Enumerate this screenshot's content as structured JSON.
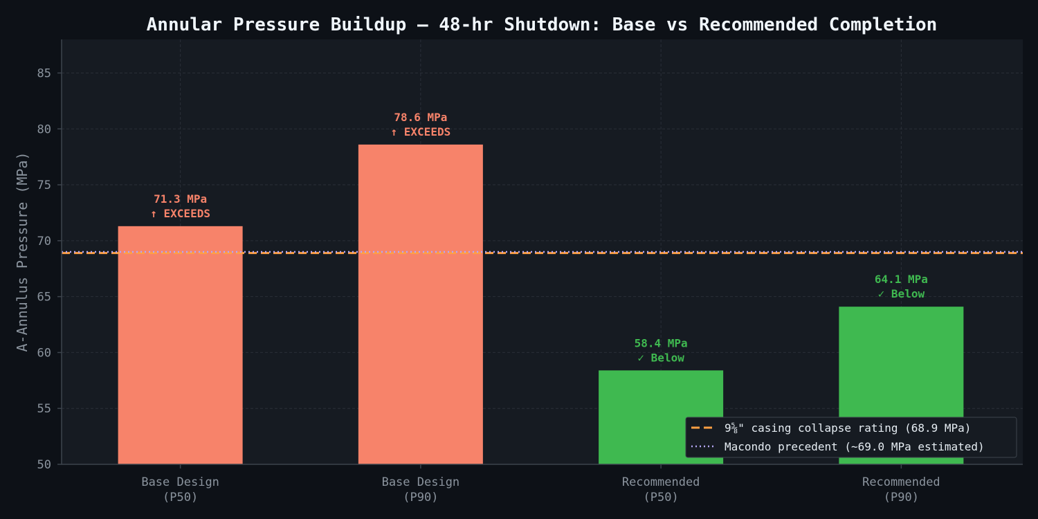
{
  "chart_data": {
    "type": "bar",
    "title": "Annular Pressure Buildup — 48-hr Shutdown: Base vs Recommended Completion",
    "xlabel": "",
    "ylabel": "A-Annulus Pressure (MPa)",
    "ylim": [
      50,
      88
    ],
    "yticks": [
      50,
      55,
      60,
      65,
      70,
      75,
      80,
      85
    ],
    "categories": [
      [
        "Base Design",
        "(P50)"
      ],
      [
        "Base Design",
        "(P90)"
      ],
      [
        "Recommended",
        "(P50)"
      ],
      [
        "Recommended",
        "(P90)"
      ]
    ],
    "values": [
      71.3,
      78.6,
      58.4,
      64.1
    ],
    "value_labels": [
      "71.3 MPa",
      "78.6 MPa",
      "58.4 MPa",
      "64.1 MPa"
    ],
    "status_labels": [
      "↑ EXCEEDS",
      "↑ EXCEEDS",
      "✓ Below",
      "✓ Below"
    ],
    "bar_colors": [
      "#f7836a",
      "#f7836a",
      "#3fb950",
      "#3fb950"
    ],
    "label_colors": [
      "#f7836a",
      "#f7836a",
      "#3fb950",
      "#3fb950"
    ],
    "reference_lines": [
      {
        "name": "9⅝\" casing collapse rating (68.9 MPa)",
        "value": 68.9,
        "color": "#ff9f43",
        "style": "dashed"
      },
      {
        "name": "Macondo precedent (~69.0 MPa estimated)",
        "value": 69.0,
        "color": "#b4a7f5",
        "style": "dotted"
      }
    ],
    "grid": true,
    "legend_position": "bottom-right"
  },
  "colors": {
    "page_bg": "#0d1117",
    "plot_bg": "#161b22",
    "grid": "#2a2f38",
    "axis": "#3d444d"
  }
}
